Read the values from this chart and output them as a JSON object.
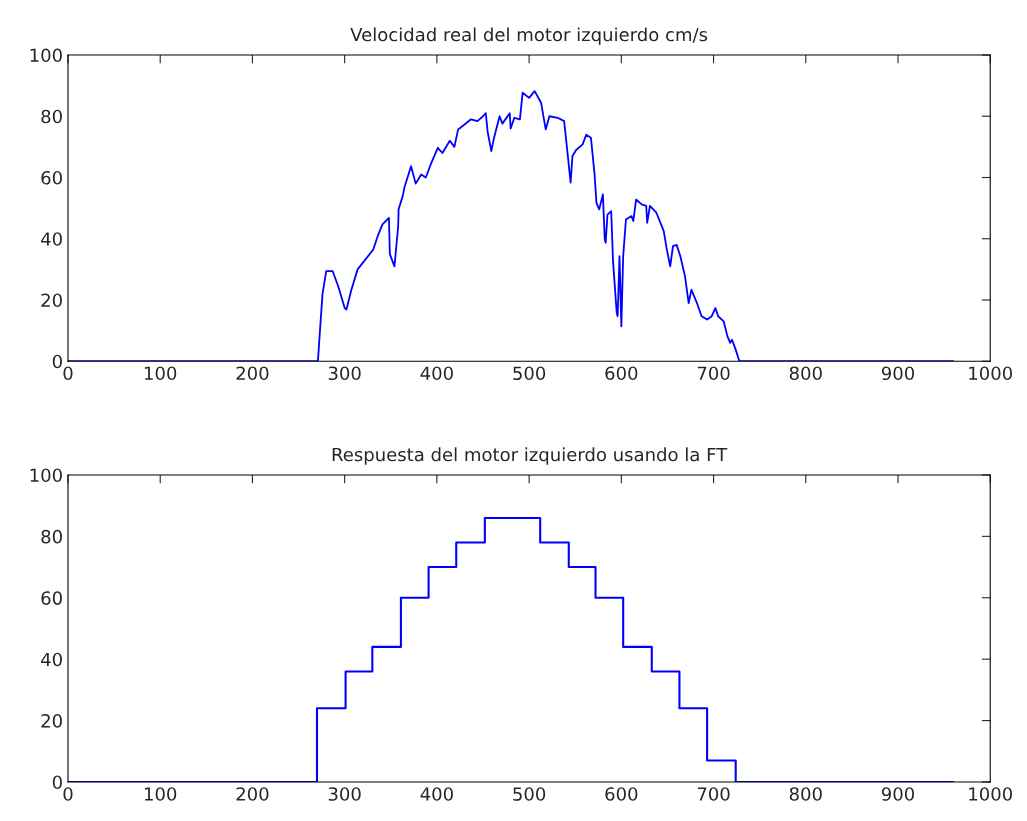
{
  "chart_data": [
    {
      "type": "line",
      "title": "Velocidad real del motor izquierdo cm/s",
      "xlim": [
        0,
        1000
      ],
      "xticks": [
        0,
        100,
        200,
        300,
        400,
        500,
        600,
        700,
        800,
        900,
        1000
      ],
      "ylim": [
        0,
        100
      ],
      "yticks": [
        0,
        20,
        40,
        60,
        80,
        100
      ],
      "grid": false,
      "series": [
        {
          "color": "#0000ff",
          "x": [
            0,
            271,
            273,
            276,
            280,
            287,
            293,
            300,
            302,
            307,
            314,
            322,
            331,
            336,
            341,
            348,
            349,
            354,
            358,
            358.5,
            363,
            365,
            372,
            377,
            383,
            388,
            394,
            401,
            406,
            414,
            419,
            423,
            430,
            437,
            444,
            450,
            453,
            455,
            459,
            462,
            468,
            471,
            479,
            480,
            484,
            490,
            493,
            500,
            506,
            513,
            518,
            522,
            531,
            538,
            542,
            545,
            547,
            551,
            558,
            562,
            567,
            571,
            573,
            576,
            580,
            582,
            583,
            585,
            589,
            591,
            595,
            596,
            598,
            600,
            602,
            605,
            611,
            613,
            616,
            622,
            627,
            628,
            631,
            638,
            646,
            649,
            653,
            656,
            660,
            664,
            669,
            673,
            676,
            682,
            687,
            693,
            698,
            702,
            705,
            711,
            715,
            718,
            720,
            724,
            728,
            960
          ],
          "values": [
            0,
            0,
            9,
            22,
            29.4,
            29.4,
            24.5,
            17.4,
            16.9,
            23,
            30,
            33,
            36.5,
            41,
            44.7,
            46.8,
            35,
            31,
            44,
            49.6,
            54,
            57,
            63.7,
            58,
            61,
            60,
            64.8,
            69.7,
            68,
            72,
            70,
            75.7,
            77.3,
            79,
            78.4,
            80,
            81,
            75,
            68.6,
            73,
            80,
            77.6,
            81,
            76,
            79.5,
            79,
            87.7,
            86,
            88.2,
            84.4,
            75.7,
            80,
            79.5,
            78.4,
            67,
            58.3,
            67,
            69,
            70.8,
            74,
            73,
            61,
            51.7,
            49.6,
            54.5,
            39.8,
            38.7,
            47.9,
            49,
            32.7,
            15.8,
            14.7,
            34.3,
            11.4,
            34.3,
            46.3,
            47.4,
            45.8,
            52.8,
            51.2,
            50.7,
            45.2,
            50.7,
            48.5,
            42.5,
            37,
            31,
            37.6,
            38,
            34.3,
            27.8,
            19,
            23.4,
            19,
            14.7,
            13.6,
            14.7,
            17.4,
            14.7,
            13,
            8.2,
            6,
            7,
            3.8,
            0,
            0
          ]
        }
      ]
    },
    {
      "type": "step",
      "title": "Respuesta del motor izquierdo usando la FT",
      "xlim": [
        0,
        1000
      ],
      "xticks": [
        0,
        100,
        200,
        300,
        400,
        500,
        600,
        700,
        800,
        900,
        1000
      ],
      "ylim": [
        0,
        100
      ],
      "yticks": [
        0,
        20,
        40,
        60,
        80,
        100
      ],
      "grid": false,
      "series": [
        {
          "color": "#0000ff",
          "x": [
            0,
            270,
            301,
            330,
            361,
            391,
            421,
            452,
            512,
            543,
            572,
            602,
            633,
            663,
            693,
            724,
            960
          ],
          "values": [
            0,
            24,
            36,
            44,
            60,
            70,
            78,
            86,
            78,
            70,
            60,
            44,
            36,
            24,
            7,
            0,
            0
          ]
        }
      ]
    }
  ]
}
